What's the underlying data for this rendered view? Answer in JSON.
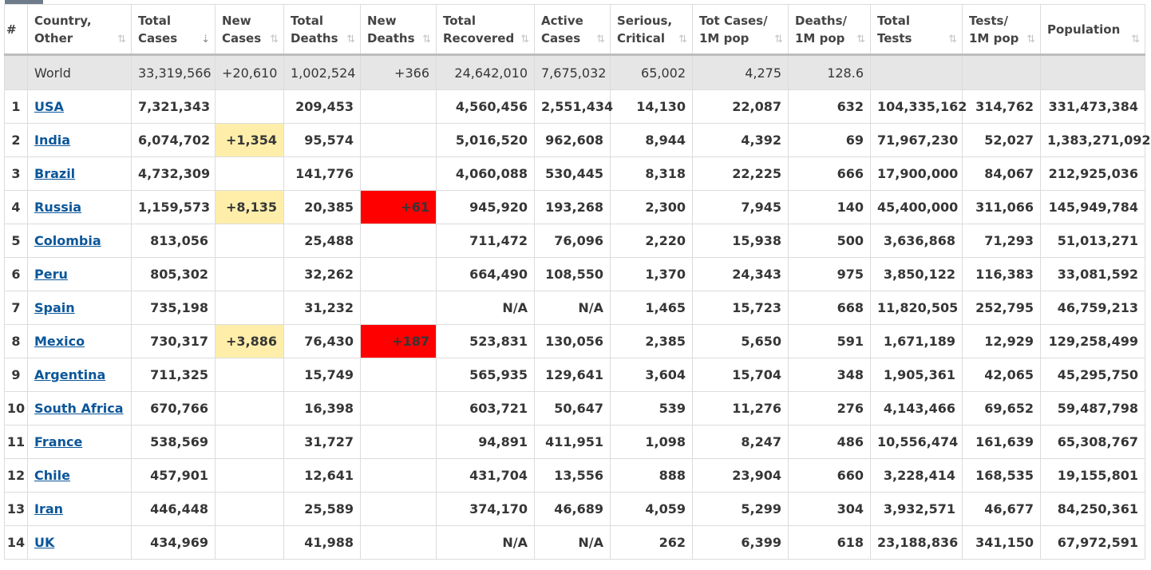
{
  "headers": [
    {
      "line1": "#",
      "line2": ""
    },
    {
      "line1": "Country,",
      "line2": "Other"
    },
    {
      "line1": "Total",
      "line2": "Cases"
    },
    {
      "line1": "New",
      "line2": "Cases"
    },
    {
      "line1": "Total",
      "line2": "Deaths"
    },
    {
      "line1": "New",
      "line2": "Deaths"
    },
    {
      "line1": "Total",
      "line2": "Recovered"
    },
    {
      "line1": "Active",
      "line2": "Cases"
    },
    {
      "line1": "Serious,",
      "line2": "Critical"
    },
    {
      "line1": "Tot Cases/",
      "line2": "1M pop"
    },
    {
      "line1": "Deaths/",
      "line2": "1M pop"
    },
    {
      "line1": "Total",
      "line2": "Tests"
    },
    {
      "line1": "Tests/",
      "line2": "1M pop"
    },
    {
      "line1": "Population",
      "line2": ""
    }
  ],
  "sort_icon_default": "⇅",
  "sort_icon_active": "⇣",
  "world": {
    "name": "World",
    "total_cases": "33,319,566",
    "new_cases": "+20,610",
    "total_deaths": "1,002,524",
    "new_deaths": "+366",
    "total_recovered": "24,642,010",
    "active_cases": "7,675,032",
    "serious": "65,002",
    "cases_per_1m": "4,275",
    "deaths_per_1m": "128.6",
    "total_tests": "",
    "tests_per_1m": "",
    "population": ""
  },
  "rows": [
    {
      "idx": "1",
      "country": "USA",
      "total_cases": "7,321,343",
      "new_cases": "",
      "total_deaths": "209,453",
      "new_deaths": "",
      "total_recovered": "4,560,456",
      "active_cases": "2,551,434",
      "serious": "14,130",
      "cases_per_1m": "22,087",
      "deaths_per_1m": "632",
      "total_tests": "104,335,162",
      "tests_per_1m": "314,762",
      "population": "331,473,384"
    },
    {
      "idx": "2",
      "country": "India",
      "total_cases": "6,074,702",
      "new_cases": "+1,354",
      "total_deaths": "95,574",
      "new_deaths": "",
      "total_recovered": "5,016,520",
      "active_cases": "962,608",
      "serious": "8,944",
      "cases_per_1m": "4,392",
      "deaths_per_1m": "69",
      "total_tests": "71,967,230",
      "tests_per_1m": "52,027",
      "population": "1,383,271,092"
    },
    {
      "idx": "3",
      "country": "Brazil",
      "total_cases": "4,732,309",
      "new_cases": "",
      "total_deaths": "141,776",
      "new_deaths": "",
      "total_recovered": "4,060,088",
      "active_cases": "530,445",
      "serious": "8,318",
      "cases_per_1m": "22,225",
      "deaths_per_1m": "666",
      "total_tests": "17,900,000",
      "tests_per_1m": "84,067",
      "population": "212,925,036"
    },
    {
      "idx": "4",
      "country": "Russia",
      "total_cases": "1,159,573",
      "new_cases": "+8,135",
      "total_deaths": "20,385",
      "new_deaths": "+61",
      "total_recovered": "945,920",
      "active_cases": "193,268",
      "serious": "2,300",
      "cases_per_1m": "7,945",
      "deaths_per_1m": "140",
      "total_tests": "45,400,000",
      "tests_per_1m": "311,066",
      "population": "145,949,784"
    },
    {
      "idx": "5",
      "country": "Colombia",
      "total_cases": "813,056",
      "new_cases": "",
      "total_deaths": "25,488",
      "new_deaths": "",
      "total_recovered": "711,472",
      "active_cases": "76,096",
      "serious": "2,220",
      "cases_per_1m": "15,938",
      "deaths_per_1m": "500",
      "total_tests": "3,636,868",
      "tests_per_1m": "71,293",
      "population": "51,013,271"
    },
    {
      "idx": "6",
      "country": "Peru",
      "total_cases": "805,302",
      "new_cases": "",
      "total_deaths": "32,262",
      "new_deaths": "",
      "total_recovered": "664,490",
      "active_cases": "108,550",
      "serious": "1,370",
      "cases_per_1m": "24,343",
      "deaths_per_1m": "975",
      "total_tests": "3,850,122",
      "tests_per_1m": "116,383",
      "population": "33,081,592"
    },
    {
      "idx": "7",
      "country": "Spain",
      "total_cases": "735,198",
      "new_cases": "",
      "total_deaths": "31,232",
      "new_deaths": "",
      "total_recovered": "N/A",
      "active_cases": "N/A",
      "serious": "1,465",
      "cases_per_1m": "15,723",
      "deaths_per_1m": "668",
      "total_tests": "11,820,505",
      "tests_per_1m": "252,795",
      "population": "46,759,213"
    },
    {
      "idx": "8",
      "country": "Mexico",
      "total_cases": "730,317",
      "new_cases": "+3,886",
      "total_deaths": "76,430",
      "new_deaths": "+187",
      "total_recovered": "523,831",
      "active_cases": "130,056",
      "serious": "2,385",
      "cases_per_1m": "5,650",
      "deaths_per_1m": "591",
      "total_tests": "1,671,189",
      "tests_per_1m": "12,929",
      "population": "129,258,499"
    },
    {
      "idx": "9",
      "country": "Argentina",
      "total_cases": "711,325",
      "new_cases": "",
      "total_deaths": "15,749",
      "new_deaths": "",
      "total_recovered": "565,935",
      "active_cases": "129,641",
      "serious": "3,604",
      "cases_per_1m": "15,704",
      "deaths_per_1m": "348",
      "total_tests": "1,905,361",
      "tests_per_1m": "42,065",
      "population": "45,295,750"
    },
    {
      "idx": "10",
      "country": "South Africa",
      "total_cases": "670,766",
      "new_cases": "",
      "total_deaths": "16,398",
      "new_deaths": "",
      "total_recovered": "603,721",
      "active_cases": "50,647",
      "serious": "539",
      "cases_per_1m": "11,276",
      "deaths_per_1m": "276",
      "total_tests": "4,143,466",
      "tests_per_1m": "69,652",
      "population": "59,487,798"
    },
    {
      "idx": "11",
      "country": "France",
      "total_cases": "538,569",
      "new_cases": "",
      "total_deaths": "31,727",
      "new_deaths": "",
      "total_recovered": "94,891",
      "active_cases": "411,951",
      "serious": "1,098",
      "cases_per_1m": "8,247",
      "deaths_per_1m": "486",
      "total_tests": "10,556,474",
      "tests_per_1m": "161,639",
      "population": "65,308,767"
    },
    {
      "idx": "12",
      "country": "Chile",
      "total_cases": "457,901",
      "new_cases": "",
      "total_deaths": "12,641",
      "new_deaths": "",
      "total_recovered": "431,704",
      "active_cases": "13,556",
      "serious": "888",
      "cases_per_1m": "23,904",
      "deaths_per_1m": "660",
      "total_tests": "3,228,414",
      "tests_per_1m": "168,535",
      "population": "19,155,801"
    },
    {
      "idx": "13",
      "country": "Iran",
      "total_cases": "446,448",
      "new_cases": "",
      "total_deaths": "25,589",
      "new_deaths": "",
      "total_recovered": "374,170",
      "active_cases": "46,689",
      "serious": "4,059",
      "cases_per_1m": "5,299",
      "deaths_per_1m": "304",
      "total_tests": "3,932,571",
      "tests_per_1m": "46,677",
      "population": "84,250,361"
    },
    {
      "idx": "14",
      "country": "UK",
      "total_cases": "434,969",
      "new_cases": "",
      "total_deaths": "41,988",
      "new_deaths": "",
      "total_recovered": "N/A",
      "active_cases": "N/A",
      "serious": "262",
      "cases_per_1m": "6,399",
      "deaths_per_1m": "618",
      "total_tests": "23,188,836",
      "tests_per_1m": "341,150",
      "population": "67,972,591"
    }
  ],
  "colors": {
    "new_cases_highlight": "#ffeeaa",
    "new_deaths_highlight": "#ff0000",
    "link": "#0b5699",
    "population": "#3472b8"
  }
}
